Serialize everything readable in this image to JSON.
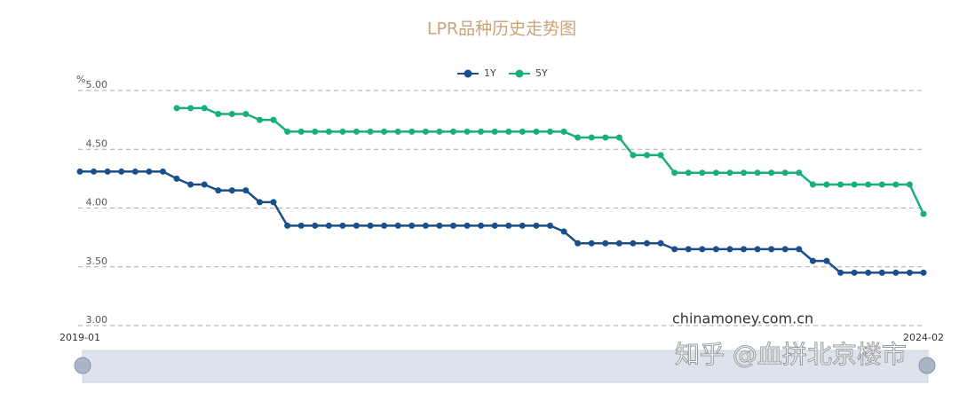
{
  "chart_data": {
    "type": "line",
    "title": "LPR品种历史走势图",
    "y_unit": "%",
    "categories": [
      "2019-01",
      null,
      null,
      null,
      null,
      null,
      null,
      null,
      null,
      null,
      null,
      null,
      null,
      null,
      null,
      null,
      null,
      null,
      null,
      null,
      null,
      null,
      null,
      null,
      null,
      null,
      null,
      null,
      null,
      null,
      null,
      null,
      null,
      null,
      null,
      null,
      null,
      null,
      null,
      null,
      null,
      null,
      null,
      null,
      null,
      null,
      null,
      null,
      null,
      null,
      null,
      null,
      null,
      null,
      null,
      null,
      null,
      null,
      null,
      null,
      null,
      "2024-02"
    ],
    "series": [
      {
        "name": "1Y",
        "color": "#1a4f8b",
        "values": [
          4.31,
          4.31,
          4.31,
          4.31,
          4.31,
          4.31,
          4.31,
          4.25,
          4.2,
          4.2,
          4.15,
          4.15,
          4.15,
          4.05,
          4.05,
          3.85,
          3.85,
          3.85,
          3.85,
          3.85,
          3.85,
          3.85,
          3.85,
          3.85,
          3.85,
          3.85,
          3.85,
          3.85,
          3.85,
          3.85,
          3.85,
          3.85,
          3.85,
          3.85,
          3.85,
          3.8,
          3.7,
          3.7,
          3.7,
          3.7,
          3.7,
          3.7,
          3.7,
          3.65,
          3.65,
          3.65,
          3.65,
          3.65,
          3.65,
          3.65,
          3.65,
          3.65,
          3.65,
          3.55,
          3.55,
          3.45,
          3.45,
          3.45,
          3.45,
          3.45,
          3.45,
          3.45
        ]
      },
      {
        "name": "5Y",
        "color": "#1aaf78",
        "values": [
          null,
          null,
          null,
          null,
          null,
          null,
          null,
          4.85,
          4.85,
          4.85,
          4.8,
          4.8,
          4.8,
          4.75,
          4.75,
          4.65,
          4.65,
          4.65,
          4.65,
          4.65,
          4.65,
          4.65,
          4.65,
          4.65,
          4.65,
          4.65,
          4.65,
          4.65,
          4.65,
          4.65,
          4.65,
          4.65,
          4.65,
          4.65,
          4.65,
          4.65,
          4.6,
          4.6,
          4.6,
          4.6,
          4.45,
          4.45,
          4.45,
          4.3,
          4.3,
          4.3,
          4.3,
          4.3,
          4.3,
          4.3,
          4.3,
          4.3,
          4.3,
          4.2,
          4.2,
          4.2,
          4.2,
          4.2,
          4.2,
          4.2,
          4.2,
          3.95
        ]
      }
    ],
    "ylim": [
      3,
      5
    ],
    "yticks": [
      {
        "value": 3,
        "label": "3.00"
      },
      {
        "value": 3.5,
        "label": "3.50"
      },
      {
        "value": 4,
        "label": "4.00"
      },
      {
        "value": 4.5,
        "label": "4.50"
      },
      {
        "value": 5,
        "label": "5.00"
      }
    ],
    "grid": true,
    "annotations": [
      "chinamoney.com.cn",
      "知乎 @血拼北京楼市"
    ]
  }
}
